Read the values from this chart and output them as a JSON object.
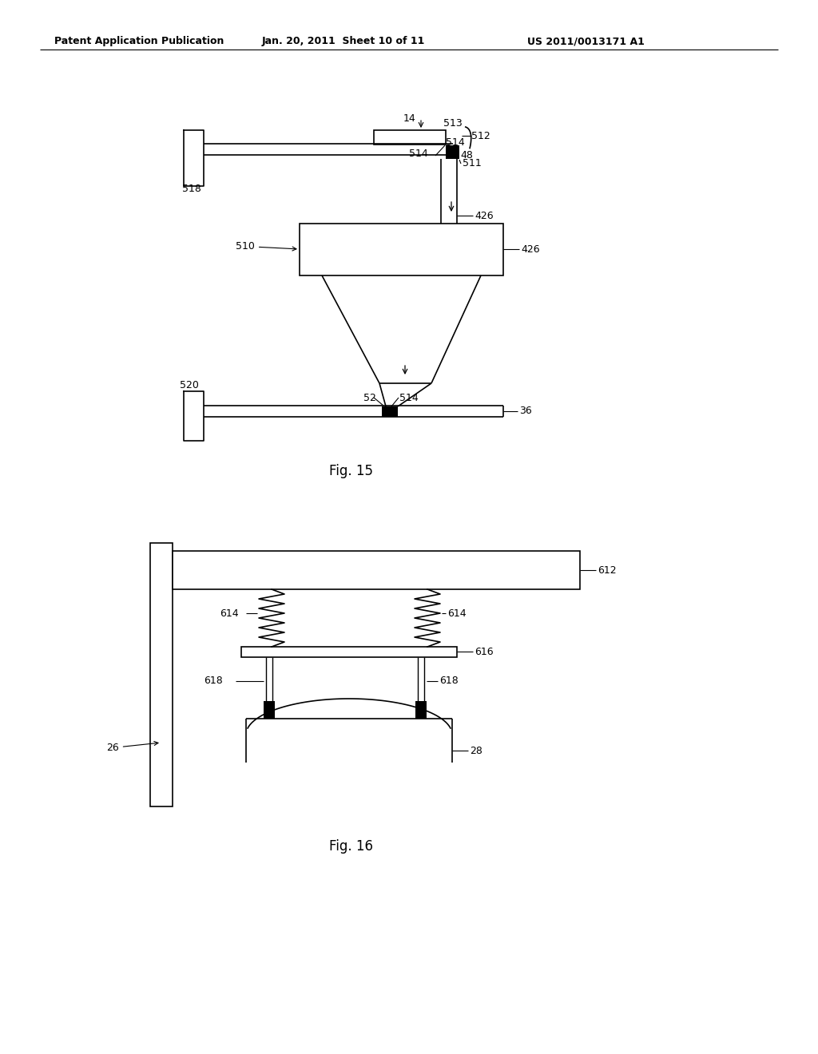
{
  "bg_color": "#ffffff",
  "line_color": "#000000",
  "header_left": "Patent Application Publication",
  "header_mid": "Jan. 20, 2011  Sheet 10 of 11",
  "header_right": "US 2011/0013171 A1"
}
